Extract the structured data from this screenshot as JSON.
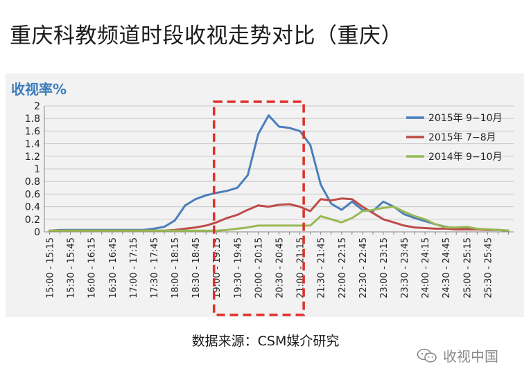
{
  "page": {
    "title": "重庆科教频道时段收视走势对比（重庆）",
    "source": "数据来源：CSM媒介研究",
    "watermark": "收视中国",
    "watermark_icon": "wechat-icon"
  },
  "chart_data": {
    "type": "line",
    "title": "",
    "ylabel": "收视率%",
    "xlabel": "",
    "ylim": [
      0,
      2
    ],
    "yticks": [
      "0",
      "0.2",
      "0.4",
      "0.6",
      "0.8",
      "1",
      "1.2",
      "1.4",
      "1.6",
      "1.8",
      "2"
    ],
    "grid": "y-major",
    "legend_position": "top-right",
    "x_tick_labels": [
      "15:00 - 15:15",
      "15:30 - 15:45",
      "16:00 - 16:15",
      "16:30 - 16:45",
      "17:00 - 17:15",
      "17:30 - 17:45",
      "18:00 - 18:15",
      "18:30 - 18:45",
      "19:00 - 19:15",
      "19:30 - 19:45",
      "20:00 - 20:15",
      "20:30 - 20:45",
      "21:00 - 21:15",
      "21:30 - 21:45",
      "22:00 - 22:15",
      "22:30 - 22:45",
      "23:00 - 23:15",
      "23:30 - 23:45",
      "24:00 - 24:15",
      "24:30 - 24:45",
      "25:00 - 25:15",
      "25:30 - 25:45"
    ],
    "n_periods": 45,
    "highlight_range": [
      16,
      24
    ],
    "series": [
      {
        "name": "2015年 9−10月",
        "color": "#4a7ebb",
        "values": [
          0.02,
          0.03,
          0.03,
          0.03,
          0.03,
          0.03,
          0.03,
          0.03,
          0.03,
          0.03,
          0.05,
          0.08,
          0.18,
          0.42,
          0.52,
          0.58,
          0.62,
          0.65,
          0.7,
          0.9,
          1.55,
          1.85,
          1.67,
          1.65,
          1.6,
          1.38,
          0.75,
          0.45,
          0.35,
          0.48,
          0.35,
          0.33,
          0.48,
          0.4,
          0.28,
          0.22,
          0.17,
          0.12,
          0.08,
          0.05,
          0.05,
          0.04,
          0.04,
          0.03,
          0.02
        ]
      },
      {
        "name": "2015年 7−8月",
        "color": "#be4b48",
        "values": [
          0.02,
          0.02,
          0.02,
          0.02,
          0.02,
          0.02,
          0.02,
          0.02,
          0.02,
          0.02,
          0.02,
          0.02,
          0.03,
          0.05,
          0.07,
          0.1,
          0.15,
          0.22,
          0.27,
          0.35,
          0.42,
          0.4,
          0.43,
          0.44,
          0.4,
          0.33,
          0.52,
          0.5,
          0.53,
          0.52,
          0.4,
          0.3,
          0.2,
          0.15,
          0.1,
          0.07,
          0.06,
          0.05,
          0.05,
          0.04,
          0.04,
          0.04,
          0.03,
          0.03,
          0.02
        ]
      },
      {
        "name": "2014年 9−10月",
        "color": "#98b954",
        "values": [
          0.02,
          0.02,
          0.02,
          0.02,
          0.02,
          0.02,
          0.02,
          0.02,
          0.02,
          0.02,
          0.02,
          0.02,
          0.02,
          0.02,
          0.02,
          0.02,
          0.02,
          0.03,
          0.05,
          0.07,
          0.1,
          0.1,
          0.1,
          0.1,
          0.1,
          0.1,
          0.25,
          0.2,
          0.15,
          0.22,
          0.33,
          0.35,
          0.38,
          0.4,
          0.32,
          0.25,
          0.2,
          0.12,
          0.07,
          0.07,
          0.08,
          0.05,
          0.04,
          0.03,
          0.02
        ]
      }
    ]
  }
}
